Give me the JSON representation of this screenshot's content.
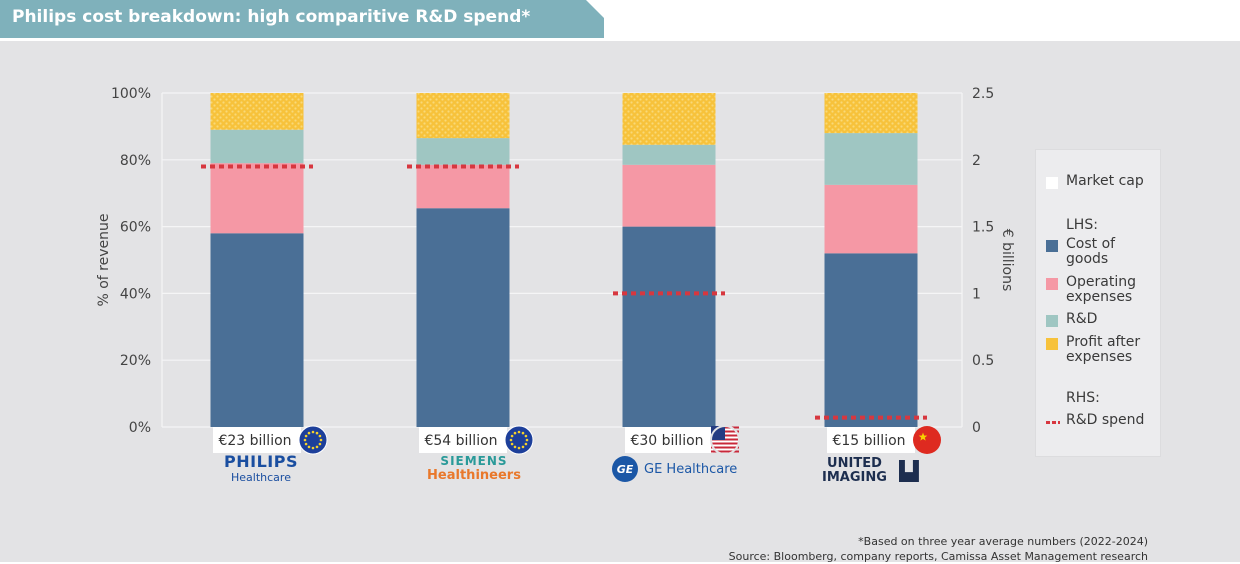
{
  "title": "Philips cost breakdown: high comparitive R&D spend*",
  "chart_data": {
    "type": "bar",
    "stacked": true,
    "categories": [
      "€23 billion",
      "€54 billion",
      "€30 billion",
      "€15 billion"
    ],
    "companies": [
      "PHILIPS Healthcare",
      "SIEMENS Healthineers",
      "GE Healthcare",
      "UNITED IMAGING"
    ],
    "flags": [
      "eu-flag-icon",
      "eu-flag-icon",
      "us-flag-icon",
      "china-flag-icon"
    ],
    "series": [
      {
        "name": "Cost of goods",
        "color": "#4a6f96",
        "values": [
          58,
          65.5,
          60,
          52
        ]
      },
      {
        "name": "Operating expenses",
        "color": "#f598a5",
        "values": [
          21,
          13,
          18.5,
          20.5
        ]
      },
      {
        "name": "R&D",
        "color": "#9fc6c2",
        "values": [
          10,
          8,
          6,
          15.5
        ]
      },
      {
        "name": "Profit after expenses",
        "color": "#f7c23b",
        "values": [
          11,
          13.5,
          15.5,
          12
        ]
      }
    ],
    "line_series": {
      "name": "R&D spend",
      "axis": "right",
      "color": "#d7373f",
      "values": [
        1.95,
        1.95,
        1.0,
        0.07
      ]
    },
    "y_left": {
      "label": "% of revenue",
      "range": [
        0,
        100
      ],
      "ticks": [
        "0%",
        "20%",
        "40%",
        "60%",
        "80%",
        "100%"
      ]
    },
    "y_right": {
      "label": "€ billions",
      "range": [
        0,
        2.5
      ],
      "ticks": [
        "0",
        "0.5",
        "1",
        "1.5",
        "2",
        "2.5"
      ]
    },
    "grid": true
  },
  "legend": {
    "market_cap": "Market cap",
    "lhs": "LHS:",
    "items": [
      "Cost of goods",
      "Operating expenses",
      "R&D",
      "Profit after expenses"
    ],
    "rhs": "RHS:",
    "rd_spend": "R&D spend"
  },
  "logos": {
    "philips": {
      "l1": "PHILIPS",
      "l2": "Healthcare"
    },
    "siemens": {
      "l1": "SIEMENS",
      "l2": "Healthineers"
    },
    "ge": {
      "badge": "GE",
      "l1": "GE Healthcare"
    },
    "united": {
      "l1": "UNITED",
      "l2": "IMAGING"
    }
  },
  "footnote": {
    "line1": "*Based on three year average numbers (2022-2024)",
    "line2": "Source: Bloomberg, company reports, Camissa Asset Management research"
  },
  "colors": {
    "banner": "#7fb1bb",
    "panel": "#e3e3e5",
    "line": "#d7373f"
  }
}
